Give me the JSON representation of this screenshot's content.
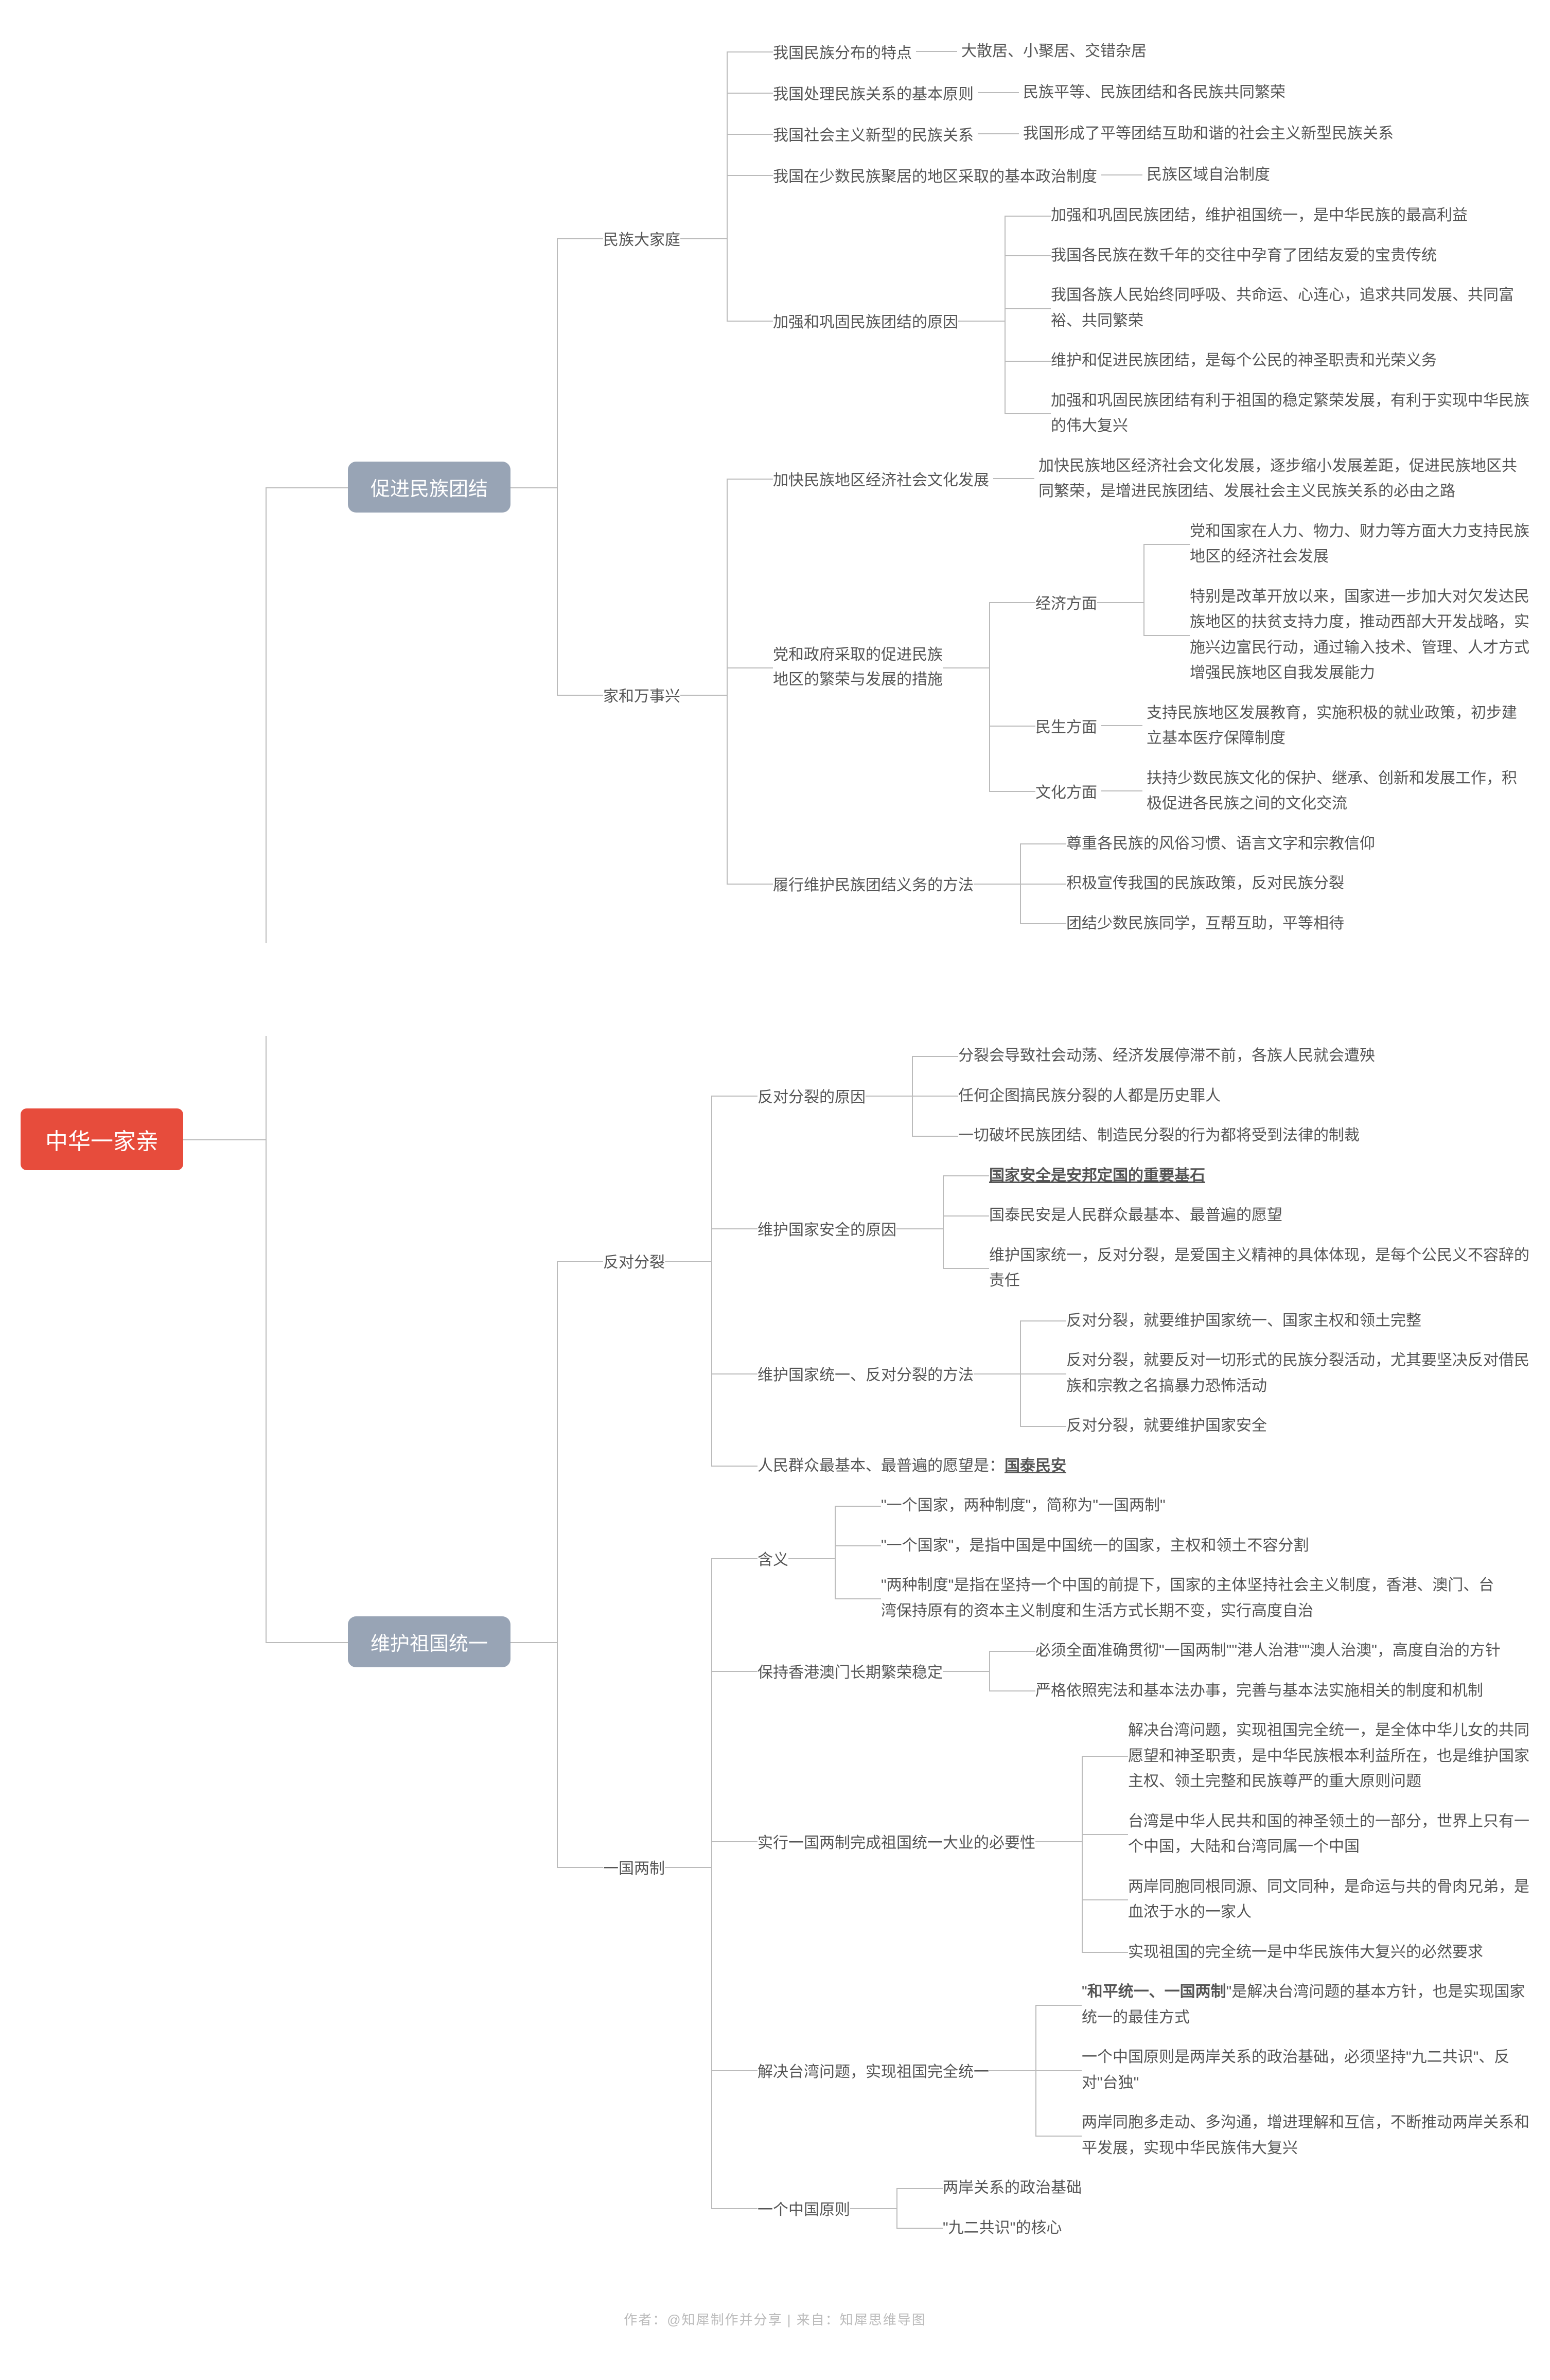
{
  "root": "中华一家亲",
  "sections": [
    {
      "title": "促进民族团结",
      "children": [
        {
          "label": "民族大家庭",
          "children": [
            {
              "label": "我国民族分布的特点",
              "leaf": "大散居、小聚居、交错杂居"
            },
            {
              "label": "我国处理民族关系的基本原则",
              "leaf": "民族平等、民族团结和各民族共同繁荣"
            },
            {
              "label": "我国社会主义新型的民族关系",
              "leaf": "我国形成了平等团结互助和谐的社会主义新型民族关系"
            },
            {
              "label": "我国在少数民族聚居的地区采取的基本政治制度",
              "leaf": "民族区域自治制度"
            },
            {
              "label": "加强和巩固民族团结的原因",
              "children": [
                {
                  "leaf": "加强和巩固民族团结，维护祖国统一，是中华民族的最高利益"
                },
                {
                  "leaf": "我国各民族在数千年的交往中孕育了团结友爱的宝贵传统"
                },
                {
                  "leaf": "我国各族人民始终同呼吸、共命运、心连心，追求共同发展、共同富裕、共同繁荣"
                },
                {
                  "leaf": "维护和促进民族团结，是每个公民的神圣职责和光荣义务"
                },
                {
                  "leaf": "加强和巩固民族团结有利于祖国的稳定繁荣发展，有利于实现中华民族的伟大复兴"
                }
              ]
            }
          ]
        },
        {
          "label": "家和万事兴",
          "children": [
            {
              "label": "加快民族地区经济社会文化发展",
              "leaf": "加快民族地区经济社会文化发展，逐步缩小发展差距，促进民族地区共同繁荣，是增进民族团结、发展社会主义民族关系的必由之路"
            },
            {
              "label": "党和政府采取的促进民族\n地区的繁荣与发展的措施",
              "children": [
                {
                  "label": "经济方面",
                  "children": [
                    {
                      "leaf": "党和国家在人力、物力、财力等方面大力支持民族地区的经济社会发展"
                    },
                    {
                      "leaf": "特别是改革开放以来，国家进一步加大对欠发达民族地区的扶贫支持力度，推动西部大开发战略，实施兴边富民行动，通过输入技术、管理、人才方式增强民族地区自我发展能力"
                    }
                  ]
                },
                {
                  "label": "民生方面",
                  "leaf": "支持民族地区发展教育，实施积极的就业政策，初步建立基本医疗保障制度"
                },
                {
                  "label": "文化方面",
                  "leaf": "扶持少数民族文化的保护、继承、创新和发展工作，积极促进各民族之间的文化交流"
                }
              ]
            },
            {
              "label": "履行维护民族团结义务的方法",
              "children": [
                {
                  "leaf": "尊重各民族的风俗习惯、语言文字和宗教信仰"
                },
                {
                  "leaf": "积极宣传我国的民族政策，反对民族分裂"
                },
                {
                  "leaf": "团结少数民族同学，互帮互助，平等相待"
                }
              ]
            }
          ]
        }
      ]
    },
    {
      "title": "维护祖国统一",
      "children": [
        {
          "label": "反对分裂",
          "children": [
            {
              "label": "反对分裂的原因",
              "children": [
                {
                  "leaf": "分裂会导致社会动荡、经济发展停滞不前，各族人民就会遭殃"
                },
                {
                  "leaf": "任何企图搞民族分裂的人都是历史罪人"
                },
                {
                  "leaf": "一切破坏民族团结、制造民分裂的行为都将受到法律的制裁"
                }
              ]
            },
            {
              "label": "维护国家安全的原因",
              "children": [
                {
                  "leaf": "国家安全是安邦定国的重要基石",
                  "bold": true,
                  "underline": true
                },
                {
                  "leaf": "国泰民安是人民群众最基本、最普遍的愿望"
                },
                {
                  "leaf": "维护国家统一，反对分裂，是爱国主义精神的具体体现，是每个公民义不容辞的责任"
                }
              ]
            },
            {
              "label": "维护国家统一、反对分裂的方法",
              "children": [
                {
                  "leaf": "反对分裂，就要维护国家统一、国家主权和领土完整"
                },
                {
                  "leaf": "反对分裂，就要反对一切形式的民族分裂活动，尤其要坚决反对借民族和宗教之名搞暴力恐怖活动"
                },
                {
                  "leaf": "反对分裂，就要维护国家安全"
                }
              ]
            },
            {
              "leaf_html": "人民群众最基本、最普遍的愿望是：<span class='bold underline'>国泰民安</span>"
            }
          ]
        },
        {
          "label": "一国两制",
          "children": [
            {
              "label": "含义",
              "children": [
                {
                  "leaf": "\"一个国家，两种制度\"，简称为\"一国两制\""
                },
                {
                  "leaf": "\"一个国家\"，是指中国是中国统一的国家，主权和领土不容分割"
                },
                {
                  "leaf": "\"两种制度\"是指在坚持一个中国的前提下，国家的主体坚持社会主义制度，香港、澳门、台湾保持原有的资本主义制度和生活方式长期不变，实行高度自治"
                }
              ]
            },
            {
              "label": "保持香港澳门长期繁荣稳定",
              "children": [
                {
                  "leaf": "必须全面准确贯彻\"一国两制\"\"港人治港\"\"澳人治澳\"，高度自治的方针"
                },
                {
                  "leaf": "严格依照宪法和基本法办事，完善与基本法实施相关的制度和机制"
                }
              ]
            },
            {
              "label": "实行一国两制完成祖国统一大业的必要性",
              "children": [
                {
                  "leaf": "解决台湾问题，实现祖国完全统一，是全体中华儿女的共同愿望和神圣职责，是中华民族根本利益所在，也是维护国家主权、领土完整和民族尊严的重大原则问题"
                },
                {
                  "leaf": "台湾是中华人民共和国的神圣领土的一部分，世界上只有一个中国，大陆和台湾同属一个中国"
                },
                {
                  "leaf": "两岸同胞同根同源、同文同种，是命运与共的骨肉兄弟，是血浓于水的一家人"
                },
                {
                  "leaf": "实现祖国的完全统一是中华民族伟大复兴的必然要求"
                }
              ]
            },
            {
              "label": "解决台湾问题，实现祖国完全统一",
              "children": [
                {
                  "leaf_html": "\"<span class='bold'>和平统一、一国两制</span>\"是解决台湾问题的基本方针，也是实现国家统一的最佳方式"
                },
                {
                  "leaf": "一个中国原则是两岸关系的政治基础，必须坚持\"九二共识\"、反对\"台独\""
                },
                {
                  "leaf": "两岸同胞多走动、多沟通，增进理解和互信，不断推动两岸关系和平发展，实现中华民族伟大复兴"
                }
              ]
            },
            {
              "label": "一个中国原则",
              "children": [
                {
                  "leaf": "两岸关系的政治基础"
                },
                {
                  "leaf": "\"九二共识\"的核心"
                }
              ]
            }
          ]
        }
      ]
    }
  ],
  "footer": "作者：@知犀制作并分享  |  来自：知犀思维导图",
  "colors": {
    "root_bg": "#e74c3c",
    "pill_bg": "#98a4b5",
    "line": "#bbbbbb",
    "text": "#555555",
    "footer": "#bbbbbb"
  }
}
